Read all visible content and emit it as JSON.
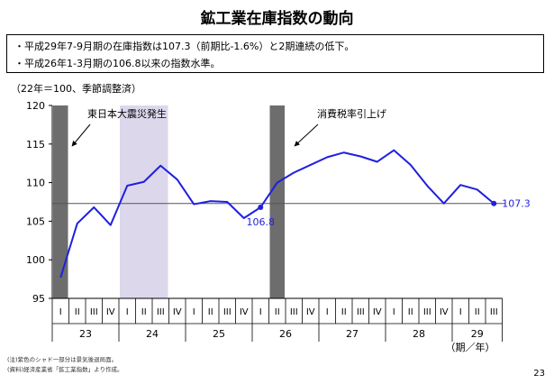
{
  "page": {
    "title": "鉱工業在庫指数の動向",
    "bullets": [
      "・平成29年7-9月期の在庫指数は107.3（前期比-1.6%）と2期連続の低下。",
      "・平成26年1-3月期の106.8以来の指数水準。"
    ],
    "unit_note": "（22年＝100、季節調整済）",
    "footnotes": [
      "(注)紫色のシャド一部分は景気後退局面。",
      "(資料)経済産業省「鉱工業指数」より作成。"
    ],
    "page_number": "23"
  },
  "chart_data": {
    "type": "line",
    "title": "鉱工業在庫指数の動向",
    "xlabel": "（期／年）",
    "ylabel": "",
    "ylim": [
      95,
      120
    ],
    "yticks": [
      95,
      100,
      105,
      110,
      115,
      120
    ],
    "quarter_labels": [
      "I",
      "II",
      "III",
      "IV",
      "I",
      "II",
      "III",
      "IV",
      "I",
      "II",
      "III",
      "IV",
      "I",
      "II",
      "III",
      "IV",
      "I",
      "II",
      "III",
      "IV",
      "I",
      "II",
      "III",
      "IV",
      "I",
      "II",
      "III"
    ],
    "years": [
      {
        "label": "23",
        "start": 0,
        "count": 4
      },
      {
        "label": "24",
        "start": 4,
        "count": 4
      },
      {
        "label": "25",
        "start": 8,
        "count": 4
      },
      {
        "label": "26",
        "start": 12,
        "count": 4
      },
      {
        "label": "27",
        "start": 16,
        "count": 4
      },
      {
        "label": "28",
        "start": 20,
        "count": 4
      },
      {
        "label": "29",
        "start": 24,
        "count": 3
      }
    ],
    "series": [
      {
        "color": "#1f1fe0",
        "values": [
          97.7,
          104.7,
          106.8,
          104.5,
          109.6,
          110.1,
          112.2,
          110.4,
          107.2,
          107.6,
          107.5,
          105.4,
          106.8,
          110.0,
          111.3,
          112.3,
          113.3,
          113.9,
          113.4,
          112.7,
          114.2,
          112.3,
          109.6,
          107.3,
          109.7,
          109.1,
          107.3
        ]
      }
    ],
    "reference_line": {
      "value": 107.3,
      "color": "#555555"
    },
    "highlighted_points": [
      {
        "index": 12,
        "label": "106.8"
      },
      {
        "index": 26,
        "label": "107.3"
      }
    ],
    "shaded_periods": [
      {
        "start": 0,
        "end": 1,
        "color": "#6d6d6d",
        "label": "東日本大震災発生"
      },
      {
        "start": 4,
        "end": 7,
        "color": "#ddd7ec",
        "label": ""
      },
      {
        "start": 13,
        "end": 14,
        "color": "#6d6d6d",
        "label": "消費税率引上げ"
      }
    ],
    "annotations": [
      {
        "text": "東日本大震災発生"
      },
      {
        "text": "消費税率引上げ"
      }
    ],
    "grid": false
  }
}
